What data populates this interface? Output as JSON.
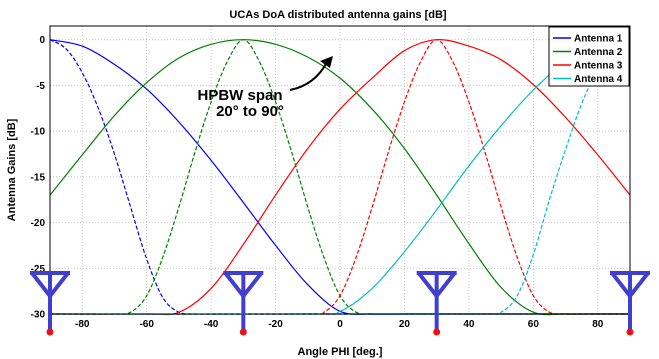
{
  "chart_data": {
    "type": "line",
    "title": "UCAs DoA distributed antenna gains [dB]",
    "xlabel": "Angle PHI [deg.]",
    "ylabel": "Antenna Gains [dB]",
    "xlim": [
      -90,
      90
    ],
    "ylim": [
      -30,
      1.5
    ],
    "xticks": [
      -80,
      -60,
      -40,
      -20,
      0,
      20,
      40,
      60,
      80
    ],
    "yticks": [
      0,
      -5,
      -10,
      -15,
      -20,
      -25,
      -30
    ],
    "grid": true,
    "legend": "top-right",
    "series": [
      {
        "name": "Antenna 1",
        "color": "#0000ff",
        "style": "solid",
        "x": [
          -90,
          -80,
          -70,
          -60,
          -50,
          -40,
          -30,
          -20,
          -10,
          0,
          10,
          20,
          30,
          40,
          50,
          60,
          70,
          80,
          90
        ],
        "y": [
          0,
          -0.7,
          -2.7,
          -5.4,
          -9.0,
          -13.2,
          -17.8,
          -22.5,
          -26.8,
          -29.7,
          -30,
          -30,
          -30,
          -30,
          -30,
          -30,
          -30,
          -30,
          -30
        ]
      },
      {
        "name": "Antenna 1 (narrow)",
        "color": "#0000ff",
        "style": "dashed",
        "x": [
          -90,
          -85,
          -80,
          -75,
          -70,
          -65,
          -60,
          -55,
          -50,
          -45,
          -40,
          -30,
          0,
          90
        ],
        "y": [
          0,
          -1.0,
          -3.6,
          -7.5,
          -12.5,
          -18.3,
          -24.0,
          -28.2,
          -29.8,
          -30,
          -30,
          -30,
          -30,
          -30
        ]
      },
      {
        "name": "Antenna 2",
        "color": "#008000",
        "style": "solid",
        "x": [
          -90,
          -80,
          -70,
          -60,
          -50,
          -40,
          -30,
          -20,
          -10,
          0,
          10,
          20,
          30,
          40,
          50,
          60,
          70,
          80,
          90
        ],
        "y": [
          -17,
          -12.6,
          -8.3,
          -4.7,
          -2.0,
          -0.5,
          0,
          -0.5,
          -1.9,
          -4.2,
          -7.6,
          -11.9,
          -17.0,
          -22.3,
          -27.1,
          -29.8,
          -30,
          -30,
          -30
        ]
      },
      {
        "name": "Antenna 2 (narrow)",
        "color": "#008000",
        "style": "dashed",
        "x": [
          -90,
          -70,
          -65,
          -60,
          -55,
          -50,
          -45,
          -40,
          -35,
          -30,
          -25,
          -20,
          -15,
          -10,
          -5,
          0,
          5,
          10,
          15,
          90
        ],
        "y": [
          -30,
          -30,
          -29.8,
          -28.0,
          -23.8,
          -18.3,
          -12.3,
          -6.8,
          -2.4,
          0,
          -2.4,
          -6.8,
          -12.3,
          -18.3,
          -23.8,
          -28.0,
          -29.8,
          -30,
          -30,
          -30
        ]
      },
      {
        "name": "Antenna 3",
        "color": "#ff0000",
        "style": "solid",
        "x": [
          -90,
          -60,
          -50,
          -40,
          -30,
          -20,
          -10,
          0,
          10,
          20,
          30,
          40,
          50,
          60,
          70,
          80,
          90
        ],
        "y": [
          -30,
          -30,
          -29.8,
          -27.2,
          -22.4,
          -17.0,
          -11.9,
          -7.6,
          -4.2,
          -1.2,
          0,
          -0.7,
          -2.2,
          -4.9,
          -8.5,
          -12.6,
          -17
        ]
      },
      {
        "name": "Antenna 3 (narrow)",
        "color": "#ff0000",
        "style": "dashed",
        "x": [
          -90,
          -10,
          -5,
          0,
          5,
          10,
          15,
          20,
          25,
          30,
          35,
          40,
          45,
          50,
          55,
          60,
          65,
          70,
          75,
          90
        ],
        "y": [
          -30,
          -30,
          -29.8,
          -28.0,
          -23.8,
          -18.3,
          -12.3,
          -6.8,
          -2.4,
          0,
          -2.4,
          -6.8,
          -12.3,
          -18.3,
          -23.8,
          -28.0,
          -29.8,
          -30,
          -30,
          -30
        ]
      },
      {
        "name": "Antenna 4",
        "color": "#00bfbf",
        "style": "solid",
        "x": [
          -90,
          -10,
          0,
          10,
          20,
          30,
          40,
          50,
          60,
          70,
          80,
          90
        ],
        "y": [
          -30,
          -30,
          -29.7,
          -27.2,
          -23.2,
          -18.6,
          -13.8,
          -9.4,
          -5.5,
          -2.4,
          -0.6,
          0
        ]
      },
      {
        "name": "Antenna 4 (narrow)",
        "color": "#00bfbf",
        "style": "dashed",
        "x": [
          -90,
          45,
          50,
          55,
          60,
          65,
          70,
          75,
          80,
          85,
          90
        ],
        "y": [
          -30,
          -30,
          -29.8,
          -28.0,
          -23.5,
          -17.5,
          -12.0,
          -7.0,
          -3.3,
          -0.9,
          0
        ]
      }
    ],
    "legend_entries": [
      "Antenna 1",
      "Antenna 2",
      "Antenna 3",
      "Antenna 4"
    ],
    "annotation": {
      "lines": [
        "HPBW span",
        "20° to 90°"
      ],
      "x": -20,
      "y": -4.5,
      "arrow_to": {
        "x": -1.5,
        "y": -1.5
      }
    },
    "antenna_markers": [
      -90,
      -30,
      30,
      90
    ]
  }
}
